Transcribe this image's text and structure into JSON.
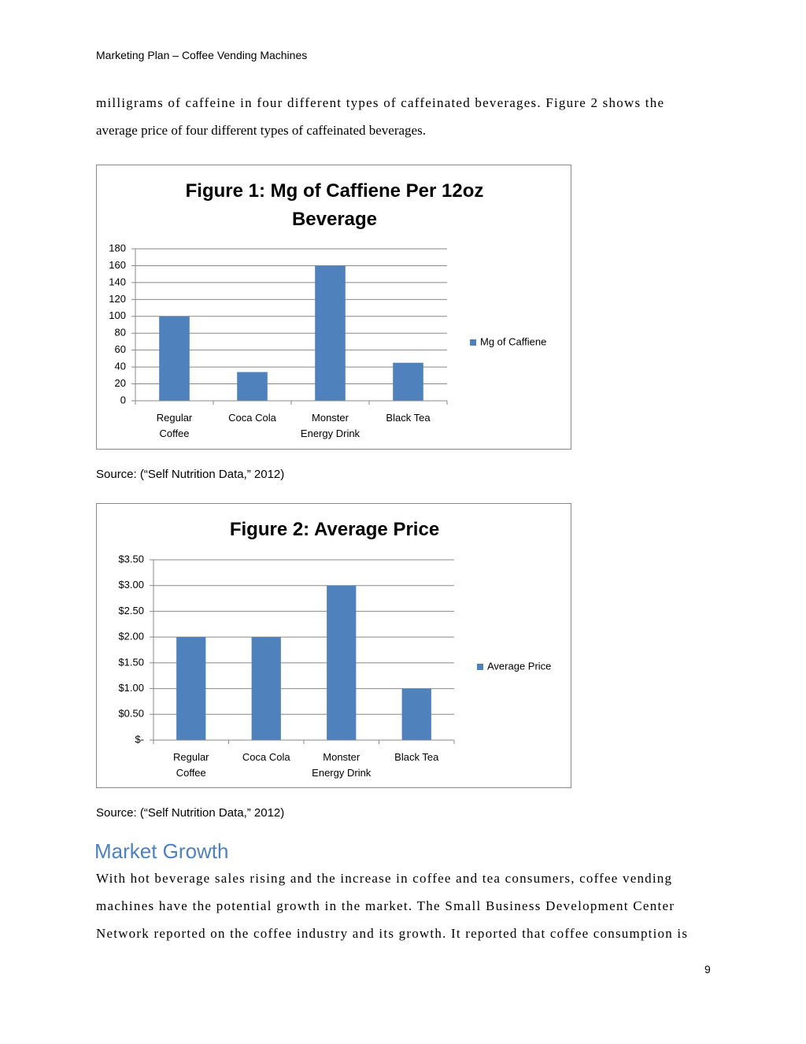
{
  "header": "Marketing Plan – Coffee Vending Machines",
  "intro": [
    "milligrams of caffeine in four different types of caffeinated beverages. Figure 2 shows the",
    "average price of four different types of caffeinated beverages."
  ],
  "chart_data": [
    {
      "type": "bar",
      "title": "Figure 1: Mg of Caffiene Per 12oz Beverage",
      "categories": [
        "Regular Coffee",
        "Coca Cola",
        "Monster Energy Drink",
        "Black Tea"
      ],
      "series": [
        {
          "name": "Mg of Caffiene",
          "color": "#4f81bd",
          "values": [
            100,
            34,
            160,
            45
          ]
        }
      ],
      "ylim": [
        0,
        180
      ],
      "yticks": [
        0,
        20,
        40,
        60,
        80,
        100,
        120,
        140,
        160,
        180
      ],
      "grid": true,
      "legend": "right"
    },
    {
      "type": "bar",
      "title": "Figure 2: Average Price",
      "categories": [
        "Regular Coffee",
        "Coca Cola",
        "Monster Energy Drink",
        "Black Tea"
      ],
      "series": [
        {
          "name": "Average Price",
          "color": "#4f81bd",
          "values": [
            2,
            2,
            3,
            1
          ]
        }
      ],
      "ylim": [
        0,
        3.5
      ],
      "yticks": [
        {
          "value": 0,
          "label": "$-"
        },
        {
          "value": 0.5,
          "label": "$0.50"
        },
        {
          "value": 1,
          "label": "$1.00"
        },
        {
          "value": 1.5,
          "label": "$1.50"
        },
        {
          "value": 2,
          "label": "$2.00"
        },
        {
          "value": 2.5,
          "label": "$2.50"
        },
        {
          "value": 3,
          "label": "$3.00"
        },
        {
          "value": 3.5,
          "label": "$3.50"
        }
      ],
      "grid": true,
      "legend": "right"
    }
  ],
  "sources": [
    "Source: (“Self Nutrition Data,” 2012)",
    "Source: (“Self Nutrition Data,” 2012)"
  ],
  "section": {
    "heading": "Market Growth",
    "lines": [
      "With hot beverage sales rising and the increase in coffee and tea consumers, coffee vending",
      "machines have the potential growth in the market. The Small Business Development Center",
      "Network reported on the coffee industry and its growth. It reported that coffee consumption is"
    ]
  },
  "page_number": "9"
}
